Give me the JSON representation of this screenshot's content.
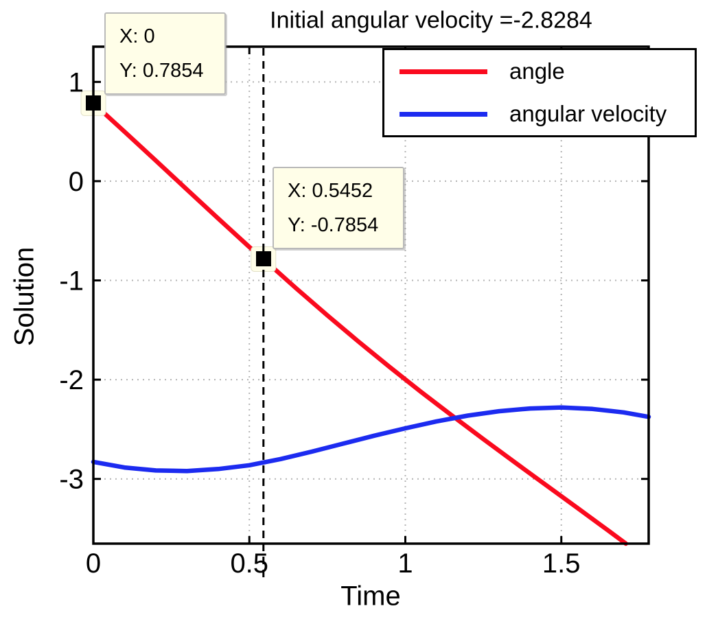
{
  "title": "Initial angular velocity =-2.8284",
  "axes": {
    "xlabel": "Time",
    "ylabel": "Solution",
    "x_ticks": [
      {
        "value": 0,
        "label": "0"
      },
      {
        "value": 0.5,
        "label": "0.5"
      },
      {
        "value": 1,
        "label": "1"
      },
      {
        "value": 1.5,
        "label": "1.5"
      }
    ],
    "y_ticks": [
      {
        "value": 1,
        "label": "1"
      },
      {
        "value": 0,
        "label": "0"
      },
      {
        "value": -1,
        "label": "-1"
      },
      {
        "value": -2,
        "label": "-2"
      },
      {
        "value": -3,
        "label": "-3"
      }
    ]
  },
  "legend": {
    "items": [
      {
        "label": "angle",
        "color": "#fa0a1e"
      },
      {
        "label": "angular velocity",
        "color": "#1c2bf0"
      }
    ]
  },
  "datatips": [
    {
      "x_label": "X: 0",
      "y_label": "Y: 0.7854"
    },
    {
      "x_label": "X: 0.5452",
      "y_label": "Y: -0.7854"
    }
  ],
  "colors": {
    "grid": "#b3b3b3",
    "axis": "#000000",
    "dashed_line": "#000000",
    "datatip_bg": "#fffee8",
    "datatip_border": "#b9b9b9"
  },
  "chart_data": {
    "type": "line",
    "title": "Initial angular velocity =-2.8284",
    "xlabel": "Time",
    "ylabel": "Solution",
    "xlim": [
      0,
      1.78
    ],
    "ylim": [
      -3.652,
      1.355
    ],
    "grid": true,
    "grid_style": "dotted",
    "legend_position": "top-right",
    "dashed_vline_x": 0.5452,
    "series": [
      {
        "name": "angle",
        "color": "#fa0a1e",
        "x": [
          0,
          0.1,
          0.2,
          0.3,
          0.4,
          0.5,
          0.5452,
          0.65,
          0.75,
          0.85,
          0.95,
          1.05,
          1.15,
          1.25,
          1.35,
          1.45,
          1.55,
          1.65,
          1.707
        ],
        "y": [
          0.7854,
          0.498,
          0.208,
          -0.084,
          -0.375,
          -0.663,
          -0.7854,
          -1.079,
          -1.352,
          -1.617,
          -1.873,
          -2.122,
          -2.363,
          -2.599,
          -2.831,
          -3.06,
          -3.289,
          -3.519,
          -3.652
        ]
      },
      {
        "name": "angular velocity",
        "color": "#1c2bf0",
        "x": [
          0,
          0.1,
          0.2,
          0.3,
          0.4,
          0.5,
          0.6,
          0.7,
          0.8,
          0.9,
          1.0,
          1.1,
          1.2,
          1.3,
          1.4,
          1.5,
          1.6,
          1.7,
          1.78
        ],
        "y": [
          -2.8284,
          -2.885,
          -2.915,
          -2.92,
          -2.9,
          -2.862,
          -2.8,
          -2.725,
          -2.645,
          -2.565,
          -2.49,
          -2.42,
          -2.362,
          -2.318,
          -2.29,
          -2.28,
          -2.295,
          -2.33,
          -2.375
        ]
      }
    ],
    "datatip_points": [
      {
        "x": 0,
        "y": 0.7854
      },
      {
        "x": 0.5452,
        "y": -0.7854
      }
    ]
  }
}
